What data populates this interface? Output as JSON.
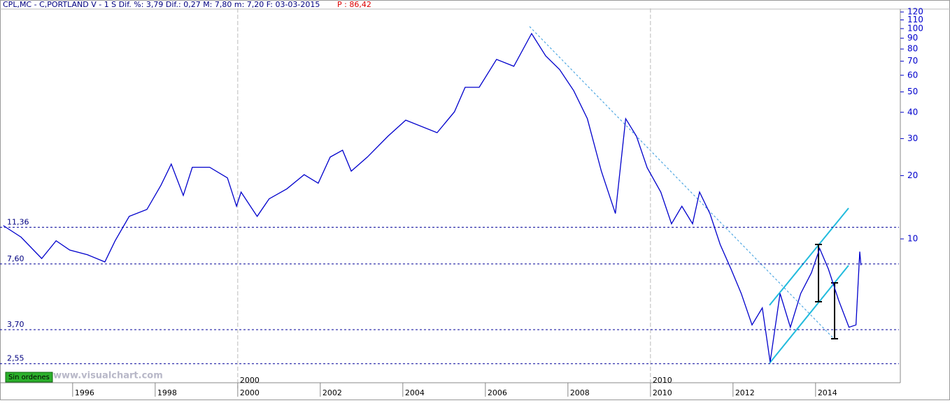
{
  "header": {
    "text": "CPL,MC - C,PORTLAND V -  1 S Dif. %: 3,79 Dif.: 0,27 M: 7,80 m: 7,20 F: 03-03-2015",
    "price": "P : 86,42"
  },
  "watermark": "www.visualchart.com",
  "badge": "Sin ordenes",
  "chart_data": {
    "type": "line",
    "log_scale": true,
    "color": "#0000cc",
    "x": [
      1994.32,
      1994.75,
      1995.25,
      1995.6,
      1995.93,
      1996.36,
      1996.78,
      1997.03,
      1997.37,
      1997.8,
      1998.14,
      1998.39,
      1998.68,
      1998.9,
      1999.32,
      1999.75,
      1999.97,
      2000.08,
      2000.47,
      2000.76,
      2001.19,
      2001.61,
      2001.95,
      2002.24,
      2002.54,
      2002.75,
      2003.14,
      2003.64,
      2004.07,
      2004.83,
      2005.25,
      2005.51,
      2005.85,
      2006.27,
      2006.69,
      2007.12,
      2007.46,
      2007.8,
      2008.14,
      2008.47,
      2008.81,
      2009.15,
      2009.4,
      2009.66,
      2009.92,
      2010.25,
      2010.51,
      2010.76,
      2011.02,
      2011.19,
      2011.44,
      2011.69,
      2011.95,
      2012.2,
      2012.46,
      2012.71,
      2012.9,
      2013.14,
      2013.39,
      2013.64,
      2013.9,
      2014.1,
      2014.31,
      2014.56,
      2014.81,
      2014.98,
      2015.07,
      2015.1
    ],
    "values": [
      11.57,
      10.2,
      8.07,
      9.8,
      8.85,
      8.4,
      7.77,
      9.8,
      12.8,
      13.8,
      18.0,
      22.7,
      16.1,
      21.9,
      21.9,
      19.5,
      14.3,
      16.7,
      12.8,
      15.5,
      17.3,
      20.2,
      18.4,
      24.5,
      26.4,
      21.0,
      24.5,
      30.8,
      36.7,
      32.0,
      40.2,
      52.6,
      52.6,
      71.4,
      66.2,
      94.8,
      74.2,
      63.8,
      50.7,
      37.3,
      21.0,
      13.2,
      37.3,
      30.8,
      21.8,
      16.7,
      11.8,
      14.3,
      11.8,
      16.7,
      13.2,
      9.4,
      7.2,
      5.5,
      3.9,
      4.7,
      2.6,
      5.5,
      3.8,
      5.5,
      6.9,
      9.0,
      7.2,
      5.1,
      3.8,
      3.9,
      8.7,
      7.5
    ],
    "xlim": [
      1994.24,
      2016.02
    ],
    "xticks": [
      1996,
      1998,
      2000,
      2002,
      2004,
      2006,
      2008,
      2010,
      2012,
      2014
    ],
    "decade_lines": [
      2000,
      2010
    ],
    "ylim": [
      2.07,
      124.8
    ],
    "yticks": [
      120,
      110,
      100,
      90,
      80,
      70,
      60,
      50,
      40,
      30,
      20,
      10
    ],
    "levels": [
      {
        "value": 11.36,
        "label": "11,36"
      },
      {
        "value": 7.6,
        "label": "7,60"
      },
      {
        "value": 3.7,
        "label": "3,70"
      },
      {
        "value": 2.55,
        "label": "2,55"
      }
    ]
  }
}
